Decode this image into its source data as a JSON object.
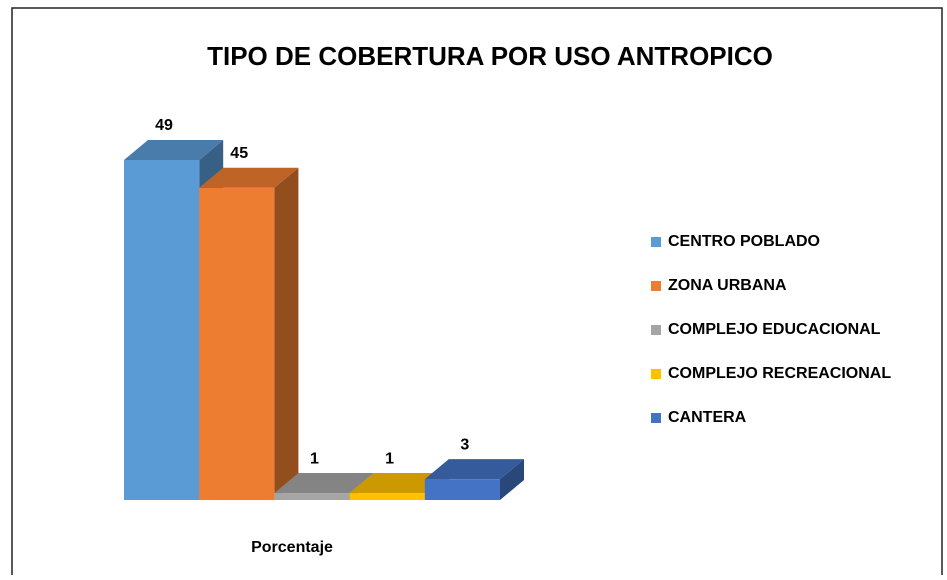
{
  "chart_data": {
    "type": "bar3d",
    "title": "TIPO DE COBERTURA POR USO ANTROPICO",
    "categories": [
      "Porcentaje"
    ],
    "series": [
      {
        "name": "CENTRO POBLADO",
        "color": "#5b9bd5",
        "values": [
          49
        ]
      },
      {
        "name": "ZONA URBANA",
        "color": "#ed7d31",
        "values": [
          45
        ]
      },
      {
        "name": "COMPLEJO EDUCACIONAL",
        "color": "#a5a5a5",
        "values": [
          1
        ]
      },
      {
        "name": "COMPLEJO RECREACIONAL",
        "color": "#ffc000",
        "values": [
          1
        ]
      },
      {
        "name": "CANTERA",
        "color": "#4472c4",
        "values": [
          3
        ]
      }
    ],
    "legend": "right"
  }
}
